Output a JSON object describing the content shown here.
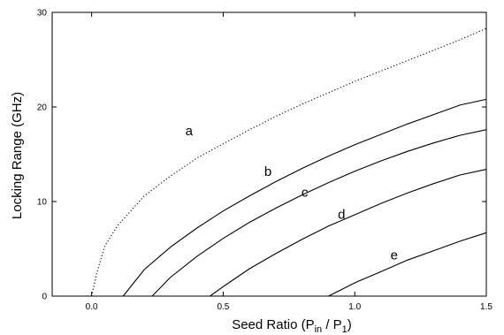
{
  "chart_data": {
    "type": "line",
    "title": "",
    "xlabel": "Seed Ratio (P",
    "xlabel_sub1": "in",
    "xlabel_mid": " / P",
    "xlabel_sub2": "1",
    "xlabel_end": ")",
    "ylabel": "Locking Range (GHz)",
    "xlim": [
      -0.15,
      1.5
    ],
    "ylim": [
      0,
      30
    ],
    "x_ticks": [
      0.0,
      0.5,
      1.0,
      1.5
    ],
    "x_tick_labels": [
      "0.0",
      "0.5",
      "1.0",
      "1.5"
    ],
    "y_ticks": [
      0,
      10,
      20,
      30
    ],
    "y_tick_labels": [
      "0",
      "10",
      "20",
      "30"
    ],
    "grid": false,
    "series": [
      {
        "name": "a",
        "style": "dotted",
        "x": [
          0.0,
          0.02,
          0.05,
          0.1,
          0.2,
          0.3,
          0.4,
          0.5,
          0.6,
          0.7,
          0.8,
          0.9,
          1.0,
          1.1,
          1.2,
          1.3,
          1.4,
          1.5
        ],
        "y": [
          0.0,
          2.5,
          5.3,
          7.5,
          10.6,
          12.7,
          14.6,
          16.1,
          17.6,
          19.0,
          20.3,
          21.5,
          22.7,
          23.8,
          24.9,
          26.0,
          27.1,
          28.3
        ]
      },
      {
        "name": "b",
        "style": "solid",
        "x": [
          0.12,
          0.2,
          0.3,
          0.4,
          0.5,
          0.6,
          0.7,
          0.8,
          0.9,
          1.0,
          1.1,
          1.2,
          1.3,
          1.4,
          1.5
        ],
        "y": [
          0.0,
          2.8,
          5.2,
          7.2,
          9.0,
          10.6,
          12.1,
          13.5,
          14.8,
          16.0,
          17.1,
          18.2,
          19.2,
          20.2,
          20.8
        ]
      },
      {
        "name": "c",
        "style": "solid",
        "x": [
          0.23,
          0.3,
          0.4,
          0.5,
          0.6,
          0.7,
          0.8,
          0.9,
          1.0,
          1.1,
          1.2,
          1.3,
          1.4,
          1.5
        ],
        "y": [
          0.0,
          2.0,
          4.2,
          6.1,
          7.8,
          9.3,
          10.7,
          12.0,
          13.2,
          14.3,
          15.3,
          16.2,
          17.0,
          17.6
        ]
      },
      {
        "name": "d",
        "style": "solid",
        "x": [
          0.45,
          0.5,
          0.6,
          0.7,
          0.8,
          0.9,
          1.0,
          1.1,
          1.2,
          1.3,
          1.4,
          1.5
        ],
        "y": [
          0.0,
          1.0,
          2.9,
          4.5,
          6.0,
          7.4,
          8.6,
          9.8,
          10.9,
          11.9,
          12.8,
          13.4
        ]
      },
      {
        "name": "e",
        "style": "solid",
        "x": [
          0.9,
          1.0,
          1.1,
          1.2,
          1.3,
          1.4,
          1.5
        ],
        "y": [
          0.0,
          1.4,
          2.6,
          3.8,
          4.8,
          5.8,
          6.7
        ]
      }
    ],
    "curve_labels": [
      {
        "text": "a",
        "x": 0.37,
        "y": 17.0
      },
      {
        "text": "b",
        "x": 0.67,
        "y": 12.7
      },
      {
        "text": "c",
        "x": 0.81,
        "y": 10.5
      },
      {
        "text": "d",
        "x": 0.95,
        "y": 8.2
      },
      {
        "text": "e",
        "x": 1.15,
        "y": 3.9
      }
    ]
  }
}
